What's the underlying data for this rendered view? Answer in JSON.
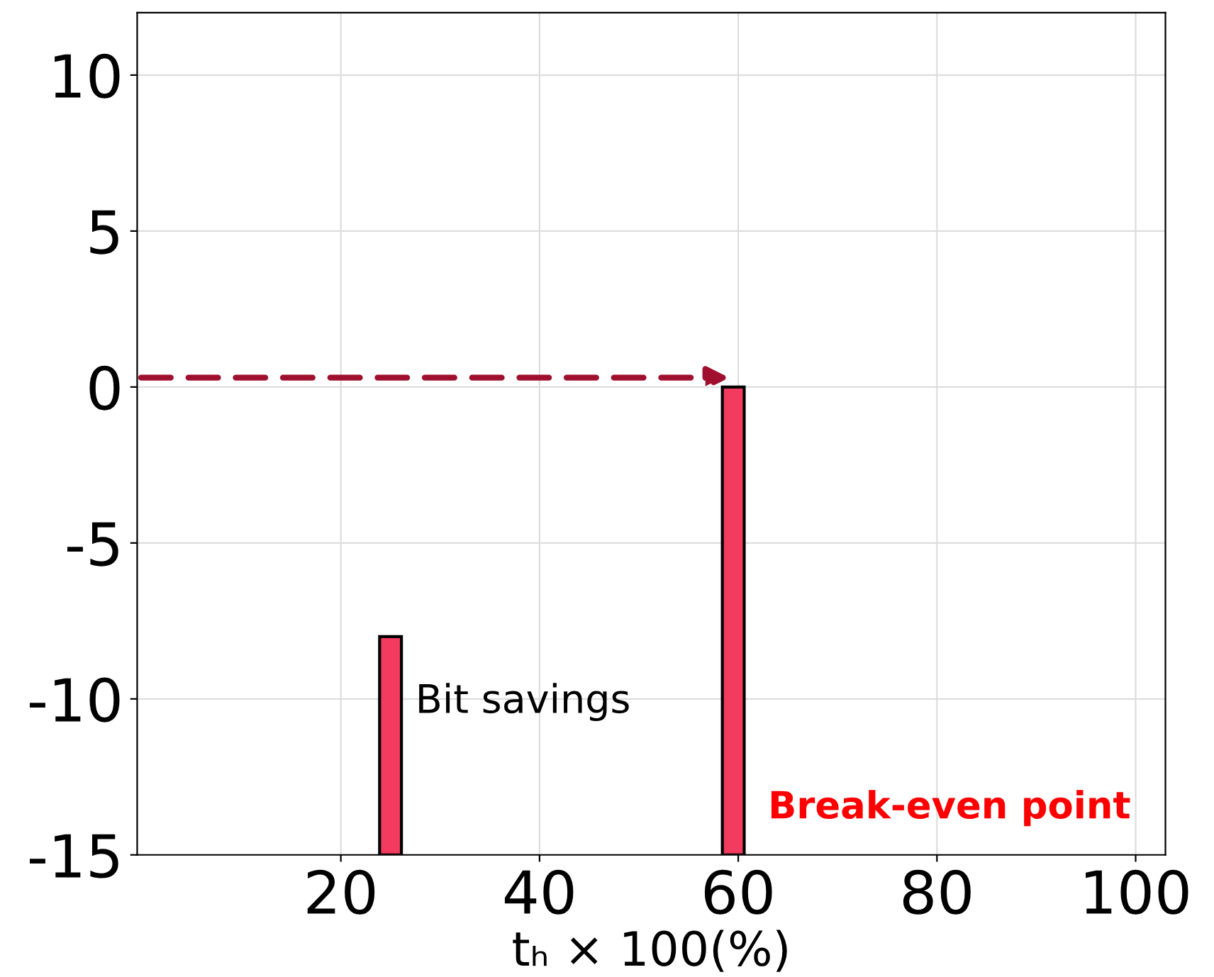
{
  "chart_data": {
    "type": "bar",
    "x": [
      25,
      59.5
    ],
    "base": [
      -15,
      -15
    ],
    "values": [
      7,
      15
    ],
    "color": "#f23b5f",
    "xlabel": "tₕ × 100(%)",
    "xlim": [
      -0.5,
      103
    ],
    "xticks": [
      20,
      40,
      60,
      80,
      100
    ],
    "ylim": [
      -15,
      12
    ],
    "yticks": [
      -15,
      -10,
      -5,
      0,
      5,
      10
    ],
    "grid": true,
    "annotations": [
      "Bit savings",
      "Break-even point"
    ]
  }
}
